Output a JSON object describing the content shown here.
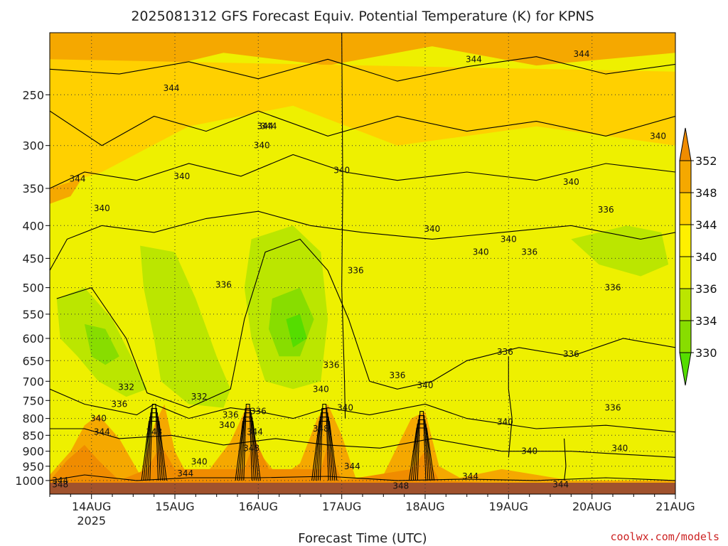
{
  "chart_data": {
    "type": "heatmap",
    "title": "2025081312 GFS Forecast Equiv. Potential Temperature (K) for KPNS",
    "xlabel": "Forecast Time (UTC)",
    "ylabel": "",
    "credit": "coolwx.com/models",
    "x_ticks": [
      {
        "label": "14AUG",
        "sublabel": "2025",
        "hour": 12
      },
      {
        "label": "15AUG",
        "sublabel": "",
        "hour": 36
      },
      {
        "label": "16AUG",
        "sublabel": "",
        "hour": 60
      },
      {
        "label": "17AUG",
        "sublabel": "",
        "hour": 84
      },
      {
        "label": "18AUG",
        "sublabel": "",
        "hour": 108
      },
      {
        "label": "19AUG",
        "sublabel": "",
        "hour": 132
      },
      {
        "label": "20AUG",
        "sublabel": "",
        "hour": 156
      },
      {
        "label": "21AUG",
        "sublabel": "",
        "hour": 180
      }
    ],
    "xlim_hours": [
      0,
      180
    ],
    "y_ticks": [
      250,
      300,
      350,
      400,
      450,
      500,
      550,
      600,
      650,
      700,
      750,
      800,
      850,
      900,
      950,
      1000
    ],
    "ylim_hpa": [
      200,
      1050
    ],
    "y_scale": "log-pressure",
    "grid": true,
    "colorbar": {
      "levels": [
        330,
        334,
        336,
        340,
        344,
        348,
        352
      ],
      "labels": [
        "352",
        "348",
        "344",
        "340",
        "336",
        "334",
        "330"
      ],
      "colors": [
        "#55dd00",
        "#88dd00",
        "#bbe600",
        "#eef000",
        "#fff000",
        "#ffd000",
        "#f5a800",
        "#f08c00"
      ]
    },
    "contour_labels": [
      {
        "text": "344",
        "hour": 3,
        "p": 1000
      },
      {
        "text": "348",
        "hour": 3,
        "p": 1015
      },
      {
        "text": "344",
        "hour": 8,
        "p": 338
      },
      {
        "text": "340",
        "hour": 15,
        "p": 376
      },
      {
        "text": "332",
        "hour": 22,
        "p": 715
      },
      {
        "text": "336",
        "hour": 20,
        "p": 760
      },
      {
        "text": "340",
        "hour": 14,
        "p": 800
      },
      {
        "text": "344",
        "hour": 15,
        "p": 840
      },
      {
        "text": "344",
        "hour": 35,
        "p": 244
      },
      {
        "text": "340",
        "hour": 38,
        "p": 335
      },
      {
        "text": "348",
        "hour": 30,
        "p": 840
      },
      {
        "text": "332",
        "hour": 43,
        "p": 740
      },
      {
        "text": "336",
        "hour": 52,
        "p": 790
      },
      {
        "text": "340",
        "hour": 51,
        "p": 820
      },
      {
        "text": "340",
        "hour": 43,
        "p": 935
      },
      {
        "text": "344",
        "hour": 39,
        "p": 975
      },
      {
        "text": "344",
        "hour": 62,
        "p": 280
      },
      {
        "text": "340",
        "hour": 61,
        "p": 300
      },
      {
        "text": "336",
        "hour": 50,
        "p": 495
      },
      {
        "text": "336",
        "hour": 60,
        "p": 780
      },
      {
        "text": "344",
        "hour": 59,
        "p": 840
      },
      {
        "text": "348",
        "hour": 58,
        "p": 890
      },
      {
        "text": "340",
        "hour": 84,
        "p": 328
      },
      {
        "text": "336",
        "hour": 81,
        "p": 660
      },
      {
        "text": "340",
        "hour": 78,
        "p": 720
      },
      {
        "text": "340",
        "hour": 85,
        "p": 770
      },
      {
        "text": "348",
        "hour": 78,
        "p": 830
      },
      {
        "text": "344",
        "hour": 87,
        "p": 950
      },
      {
        "text": "344",
        "hour": 63,
        "p": 280
      },
      {
        "text": "336",
        "hour": 88,
        "p": 470
      },
      {
        "text": "336",
        "hour": 100,
        "p": 685
      },
      {
        "text": "340",
        "hour": 110,
        "p": 405
      },
      {
        "text": "340",
        "hour": 108,
        "p": 710
      },
      {
        "text": "348",
        "hour": 101,
        "p": 1020
      },
      {
        "text": "344",
        "hour": 122,
        "p": 220
      },
      {
        "text": "340",
        "hour": 124,
        "p": 440
      },
      {
        "text": "340",
        "hour": 132,
        "p": 420
      },
      {
        "text": "336",
        "hour": 138,
        "p": 440
      },
      {
        "text": "336",
        "hour": 131,
        "p": 630
      },
      {
        "text": "340",
        "hour": 131,
        "p": 810
      },
      {
        "text": "340",
        "hour": 138,
        "p": 900
      },
      {
        "text": "344",
        "hour": 121,
        "p": 985
      },
      {
        "text": "344",
        "hour": 147,
        "p": 1015
      },
      {
        "text": "344",
        "hour": 153,
        "p": 216
      },
      {
        "text": "340",
        "hour": 150,
        "p": 342
      },
      {
        "text": "336",
        "hour": 160,
        "p": 378
      },
      {
        "text": "336",
        "hour": 162,
        "p": 500
      },
      {
        "text": "336",
        "hour": 150,
        "p": 635
      },
      {
        "text": "336",
        "hour": 162,
        "p": 770
      },
      {
        "text": "340",
        "hour": 164,
        "p": 890
      },
      {
        "text": "340",
        "hour": 175,
        "p": 290
      },
      {
        "text": "344",
        "hour": 62,
        "p": 280
      }
    ]
  }
}
